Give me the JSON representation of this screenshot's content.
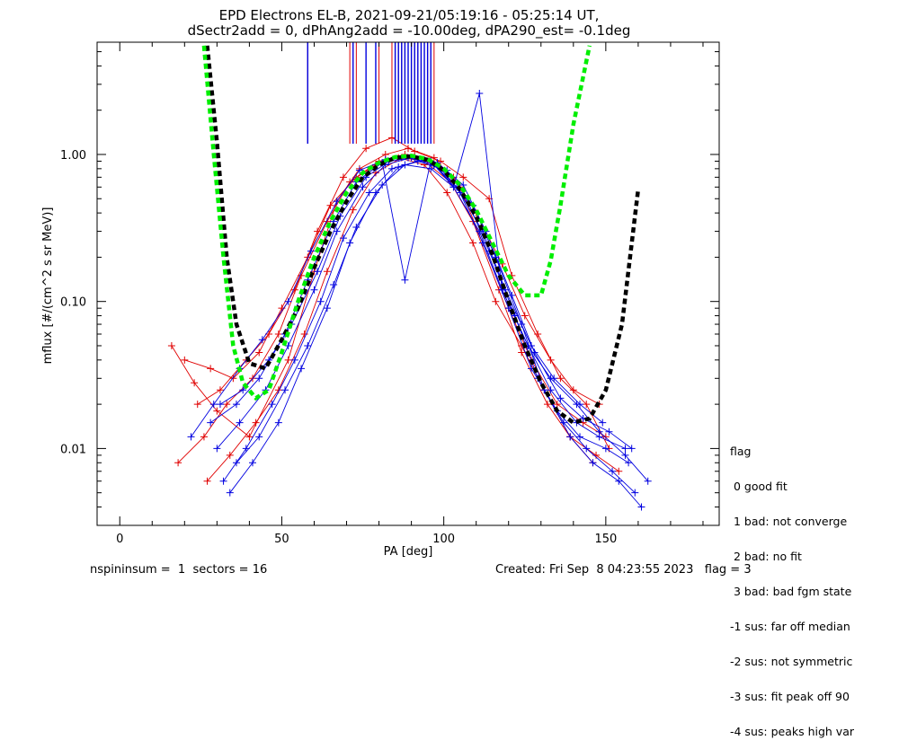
{
  "title": {
    "line1": "EPD Electrons EL-B, 2021-09-21/05:19:16 - 05:25:14 UT,",
    "line2": "dSectr2add = 0, dPhAng2add = -10.00deg, dPA290_est=  -0.1deg"
  },
  "legend": {
    "title": "flag",
    "items": [
      " 0 good fit",
      " 1 bad: not converge",
      " 2 bad: no fit",
      " 3 bad: bad fgm state",
      "-1 sus: far off median",
      "-2 sus: not symmetric",
      "-3 sus: fit peak off 90",
      "-4 sus: peaks high var"
    ]
  },
  "footer": {
    "left": "nspininsum =  1  sectors = 16",
    "right": "Created: Fri Sep  8 04:23:55 2023   flag = 3"
  },
  "colors": {
    "red": "#e00000",
    "blue": "#0000e0",
    "black": "#000000",
    "green": "#00ee00"
  },
  "chart_data": {
    "type": "line",
    "xlabel": "PA [deg]",
    "ylabel": "mflux [#/(cm^2 s sr MeV)]",
    "x_ticks": [
      "0",
      "50",
      "100",
      "150"
    ],
    "y_ticks": [
      "0.01",
      "0.10",
      "1.00"
    ],
    "xlim": [
      -7,
      185
    ],
    "ylim": [
      0.003,
      5.8
    ],
    "y_scale": "log",
    "series": [
      {
        "color": "#e00000",
        "x": [
          16,
          23,
          30,
          40,
          52,
          60,
          67,
          74,
          82,
          89,
          97,
          105,
          112,
          120,
          127,
          135,
          143,
          150
        ],
        "y": [
          0.05,
          0.028,
          0.018,
          0.012,
          0.04,
          0.16,
          0.48,
          0.8,
          1.0,
          1.1,
          0.95,
          0.6,
          0.25,
          0.09,
          0.04,
          0.02,
          0.015,
          0.012
        ]
      },
      {
        "color": "#e00000",
        "x": [
          18,
          26,
          33,
          41,
          49,
          56,
          64,
          71,
          79,
          86,
          94,
          101,
          109,
          116,
          124,
          131,
          139,
          146
        ],
        "y": [
          0.008,
          0.012,
          0.02,
          0.03,
          0.06,
          0.15,
          0.35,
          0.65,
          0.85,
          0.95,
          0.85,
          0.55,
          0.25,
          0.1,
          0.05,
          0.025,
          0.012,
          0.008
        ]
      },
      {
        "color": "#e00000",
        "x": [
          24,
          31,
          39,
          46,
          54,
          61,
          69,
          76,
          84,
          91,
          99,
          106,
          114,
          121,
          129,
          136,
          144,
          151
        ],
        "y": [
          0.02,
          0.025,
          0.04,
          0.06,
          0.12,
          0.3,
          0.7,
          1.1,
          1.3,
          1.05,
          0.9,
          0.7,
          0.5,
          0.15,
          0.06,
          0.03,
          0.02,
          0.01
        ]
      },
      {
        "color": "#e00000",
        "x": [
          20,
          28,
          35,
          43,
          50,
          58,
          65,
          73,
          80,
          88,
          95,
          103,
          110,
          118,
          125,
          133,
          140,
          148
        ],
        "y": [
          0.04,
          0.035,
          0.03,
          0.045,
          0.09,
          0.2,
          0.45,
          0.7,
          0.9,
          1.0,
          0.9,
          0.7,
          0.4,
          0.18,
          0.08,
          0.04,
          0.025,
          0.02
        ]
      },
      {
        "color": "#e00000",
        "x": [
          27,
          34,
          42,
          49,
          57,
          64,
          72,
          79,
          87,
          94,
          102,
          109,
          117,
          124,
          132,
          139,
          147,
          154
        ],
        "y": [
          0.006,
          0.009,
          0.015,
          0.025,
          0.06,
          0.16,
          0.42,
          0.75,
          0.95,
          0.9,
          0.65,
          0.35,
          0.12,
          0.045,
          0.02,
          0.012,
          0.009,
          0.007
        ]
      },
      {
        "color": "#0000e0",
        "x": [
          30,
          37,
          45,
          52,
          60,
          67,
          75,
          82,
          90,
          97,
          105,
          112,
          120,
          127,
          135,
          142,
          150,
          157
        ],
        "y": [
          0.01,
          0.015,
          0.025,
          0.05,
          0.12,
          0.3,
          0.6,
          0.85,
          0.95,
          0.85,
          0.55,
          0.25,
          0.09,
          0.035,
          0.018,
          0.012,
          0.01,
          0.008
        ]
      },
      {
        "color": "#0000e0",
        "x": [
          32,
          39,
          47,
          54,
          62,
          69,
          77,
          84,
          92,
          99,
          107,
          114,
          122,
          129,
          137,
          144,
          152,
          159
        ],
        "y": [
          0.006,
          0.01,
          0.02,
          0.04,
          0.1,
          0.27,
          0.55,
          0.8,
          0.9,
          0.8,
          0.5,
          0.22,
          0.08,
          0.03,
          0.015,
          0.01,
          0.007,
          0.005
        ]
      },
      {
        "color": "#0000e0",
        "x": [
          28,
          36,
          43,
          51,
          58,
          66,
          73,
          81,
          88,
          96,
          103,
          111,
          118,
          126,
          133,
          141,
          148,
          156
        ],
        "y": [
          0.015,
          0.02,
          0.03,
          0.06,
          0.14,
          0.35,
          0.65,
          0.88,
          0.14,
          0.9,
          0.6,
          2.6,
          0.12,
          0.05,
          0.025,
          0.015,
          0.012,
          0.01
        ]
      },
      {
        "color": "#0000e0",
        "x": [
          34,
          41,
          49,
          56,
          64,
          71,
          79,
          86,
          94,
          101,
          109,
          116,
          124,
          131,
          139,
          146,
          154,
          161
        ],
        "y": [
          0.005,
          0.008,
          0.015,
          0.035,
          0.09,
          0.25,
          0.55,
          0.82,
          0.92,
          0.78,
          0.45,
          0.2,
          0.07,
          0.025,
          0.012,
          0.008,
          0.006,
          0.004
        ]
      },
      {
        "color": "#0000e0",
        "x": [
          22,
          29,
          37,
          44,
          52,
          59,
          67,
          74,
          82,
          89,
          97,
          104,
          112,
          119,
          127,
          134,
          142,
          149
        ],
        "y": [
          0.012,
          0.02,
          0.035,
          0.055,
          0.1,
          0.22,
          0.48,
          0.78,
          0.92,
          0.95,
          0.85,
          0.6,
          0.3,
          0.12,
          0.05,
          0.03,
          0.02,
          0.015
        ]
      },
      {
        "color": "#0000e0",
        "x": [
          36,
          43,
          51,
          58,
          66,
          73,
          81,
          88,
          96,
          103,
          111,
          118,
          126,
          133,
          141,
          148,
          156,
          163
        ],
        "y": [
          0.008,
          0.012,
          0.025,
          0.05,
          0.13,
          0.32,
          0.62,
          0.85,
          0.8,
          0.6,
          0.3,
          0.12,
          0.05,
          0.03,
          0.02,
          0.013,
          0.009,
          0.006
        ]
      },
      {
        "color": "#0000e0",
        "x": [
          31,
          38,
          46,
          53,
          61,
          68,
          76,
          83,
          91,
          98,
          106,
          113,
          121,
          128,
          136,
          143,
          151,
          158
        ],
        "y": [
          0.02,
          0.025,
          0.04,
          0.07,
          0.16,
          0.38,
          0.7,
          0.9,
          0.95,
          0.88,
          0.62,
          0.3,
          0.11,
          0.045,
          0.022,
          0.016,
          0.013,
          0.01
        ]
      }
    ],
    "model_curves": [
      {
        "color": "#000000",
        "style": "dashed",
        "x": [
          27,
          30,
          33,
          36,
          40,
          45,
          50,
          55,
          60,
          65,
          70,
          75,
          80,
          85,
          90,
          95,
          100,
          105,
          110,
          115,
          120,
          125,
          130,
          135,
          140,
          145,
          150,
          155,
          160
        ],
        "y": [
          5.5,
          1.2,
          0.2,
          0.07,
          0.038,
          0.035,
          0.055,
          0.09,
          0.17,
          0.3,
          0.48,
          0.7,
          0.85,
          0.95,
          0.97,
          0.92,
          0.78,
          0.58,
          0.38,
          0.21,
          0.1,
          0.05,
          0.028,
          0.018,
          0.015,
          0.016,
          0.025,
          0.07,
          0.58
        ]
      },
      {
        "color": "#00ee00",
        "style": "dashed",
        "x": [
          26,
          29,
          32,
          35,
          38,
          42,
          46,
          50,
          55,
          60,
          65,
          70,
          75,
          80,
          85,
          90,
          95,
          100,
          105,
          110,
          115,
          120,
          125,
          130,
          133,
          136,
          140,
          145
        ],
        "y": [
          5.5,
          1.0,
          0.2,
          0.05,
          0.028,
          0.022,
          0.025,
          0.045,
          0.1,
          0.2,
          0.35,
          0.55,
          0.75,
          0.88,
          0.96,
          0.98,
          0.93,
          0.8,
          0.62,
          0.42,
          0.25,
          0.15,
          0.11,
          0.11,
          0.19,
          0.45,
          1.6,
          5.5
        ]
      }
    ],
    "vertical_markers": {
      "red_x": [
        58,
        71,
        73,
        80,
        84,
        85,
        86,
        87,
        88,
        89,
        90,
        91,
        92,
        93,
        94,
        95,
        97
      ],
      "blue_x": [
        58,
        72,
        76,
        79,
        85,
        86,
        87,
        88,
        89,
        90,
        91,
        92,
        93,
        94,
        95,
        96
      ]
    },
    "grid": false,
    "legend_position": "bottom-right, outside plot"
  }
}
